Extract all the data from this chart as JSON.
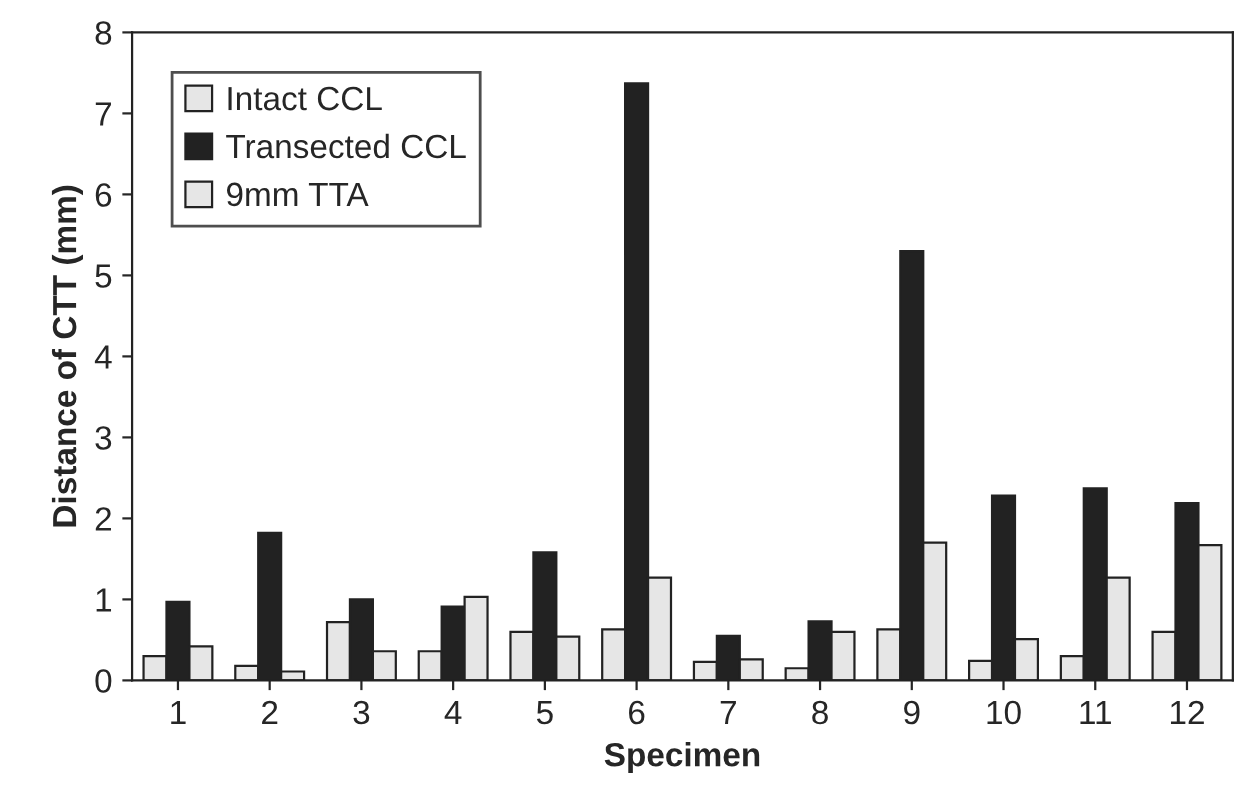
{
  "chart_data": {
    "type": "bar",
    "xlabel": "Specimen",
    "ylabel": "Distance of CTT (mm)",
    "categories": [
      "1",
      "2",
      "3",
      "4",
      "5",
      "6",
      "7",
      "8",
      "9",
      "10",
      "11",
      "12"
    ],
    "series": [
      {
        "name": "Intact CCL",
        "color": "#e6e6e6",
        "values": [
          0.3,
          0.18,
          0.72,
          0.36,
          0.6,
          0.63,
          0.23,
          0.15,
          0.63,
          0.24,
          0.3,
          0.6
        ]
      },
      {
        "name": "Transected CCL",
        "color": "#222222",
        "values": [
          0.97,
          1.82,
          1.0,
          0.91,
          1.58,
          7.37,
          0.55,
          0.73,
          5.3,
          2.28,
          2.37,
          2.19
        ]
      },
      {
        "name": "9mm TTA",
        "color": "#e6e6e6",
        "values": [
          0.42,
          0.11,
          0.36,
          1.03,
          0.54,
          1.27,
          0.26,
          0.6,
          1.7,
          0.51,
          1.27,
          1.67
        ]
      }
    ],
    "ylim": [
      0,
      8
    ],
    "yticks": [
      0,
      1,
      2,
      3,
      4,
      5,
      6,
      7,
      8
    ],
    "grid": false,
    "legend": "top left"
  }
}
